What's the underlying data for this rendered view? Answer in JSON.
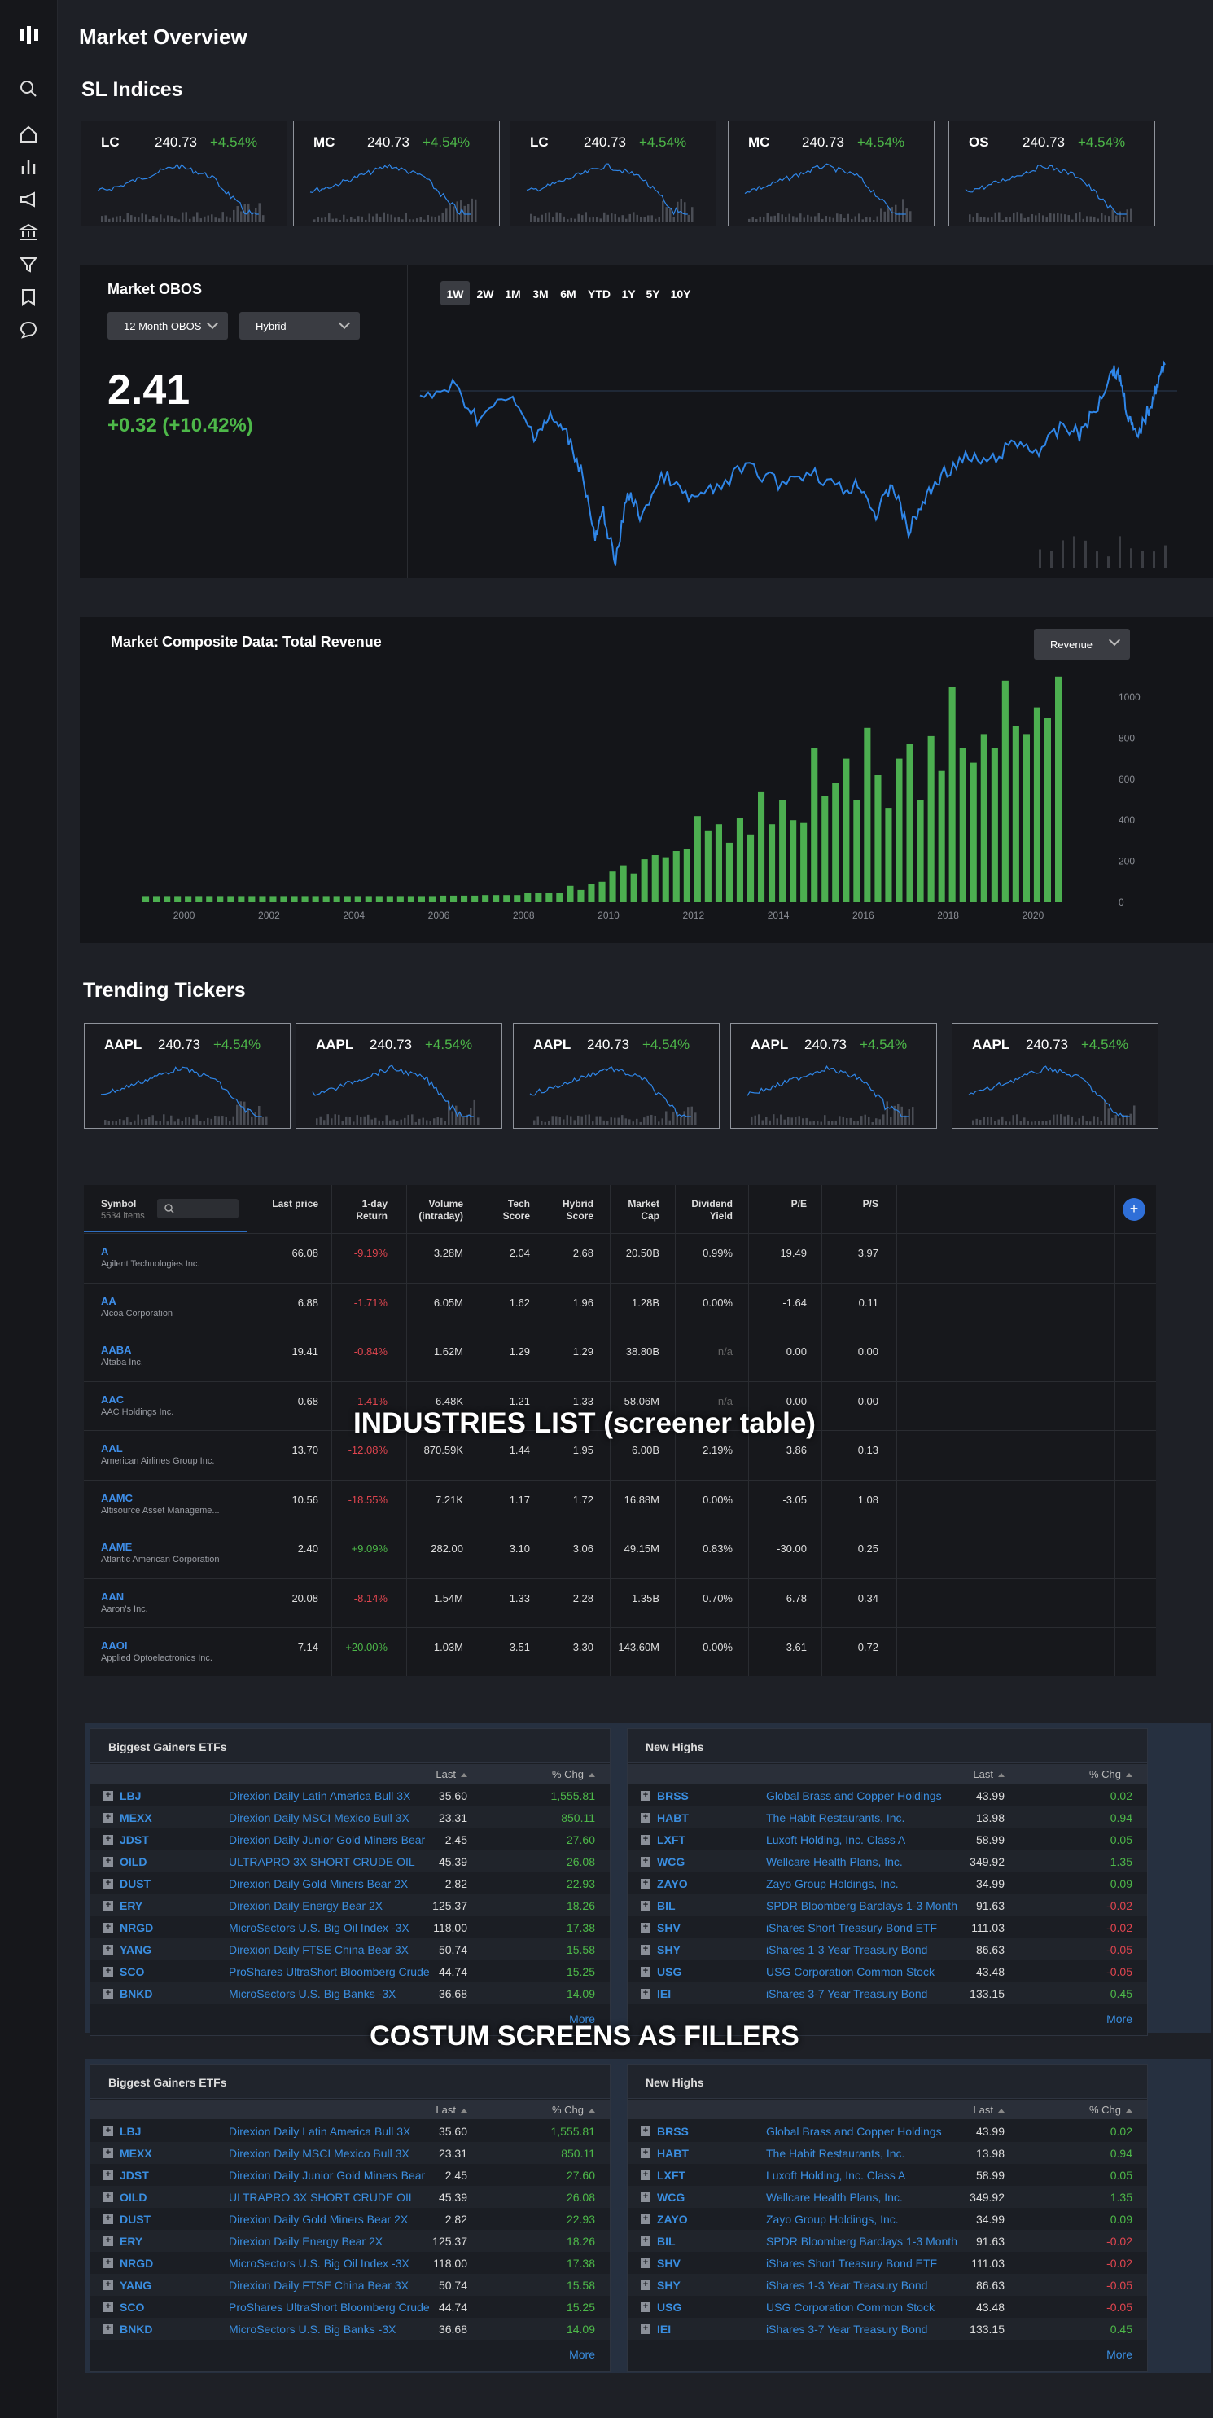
{
  "page": {
    "title": "Market Overview"
  },
  "sidebar": {
    "icons": [
      "logo-icon",
      "search-icon",
      "home-icon",
      "bar-chart-icon",
      "megaphone-icon",
      "bank-icon",
      "filter-icon",
      "bookmark-icon",
      "chat-icon"
    ]
  },
  "indices": {
    "title": "SL Indices",
    "cards": [
      {
        "symbol": "LC",
        "price": "240.73",
        "change": "+4.54%"
      },
      {
        "symbol": "MC",
        "price": "240.73",
        "change": "+4.54%"
      },
      {
        "symbol": "LC",
        "price": "240.73",
        "change": "+4.54%"
      },
      {
        "symbol": "MC",
        "price": "240.73",
        "change": "+4.54%"
      },
      {
        "symbol": "OS",
        "price": "240.73",
        "change": "+4.54%"
      }
    ]
  },
  "obos": {
    "title": "Market OBOS",
    "dropdown1": "12 Month OBOS",
    "dropdown2": "Hybrid",
    "value": "2.41",
    "change": "+0.32 (+10.42%)",
    "tabs": [
      "1W",
      "2W",
      "1M",
      "3M",
      "6M",
      "YTD",
      "1Y",
      "5Y",
      "10Y"
    ],
    "active_tab": "1W"
  },
  "composite": {
    "title": "Market Composite Data: Total Revenue",
    "dropdown": "Revenue"
  },
  "chart_data": {
    "type": "bar",
    "title": "Market Composite Data: Total Revenue",
    "x": [
      "1999Q1",
      "1999Q2",
      "1999Q3",
      "1999Q4",
      "2000Q1",
      "2000Q2",
      "2000Q3",
      "2000Q4",
      "2001Q1",
      "2001Q2",
      "2001Q3",
      "2001Q4",
      "2002Q1",
      "2002Q2",
      "2002Q3",
      "2002Q4",
      "2003Q1",
      "2003Q2",
      "2003Q3",
      "2003Q4",
      "2004Q1",
      "2004Q2",
      "2004Q3",
      "2004Q4",
      "2005Q1",
      "2005Q2",
      "2005Q3",
      "2005Q4",
      "2006Q1",
      "2006Q2",
      "2006Q3",
      "2006Q4",
      "2007Q1",
      "2007Q2",
      "2007Q3",
      "2007Q4",
      "2008Q1",
      "2008Q2",
      "2008Q3",
      "2008Q4",
      "2009Q1",
      "2009Q2",
      "2009Q3",
      "2009Q4",
      "2010Q1",
      "2010Q2",
      "2010Q3",
      "2010Q4",
      "2011Q1",
      "2011Q2",
      "2011Q3",
      "2011Q4",
      "2012Q1",
      "2012Q2",
      "2012Q3",
      "2012Q4",
      "2013Q1",
      "2013Q2",
      "2013Q3",
      "2013Q4",
      "2014Q1",
      "2014Q2",
      "2014Q3",
      "2014Q4",
      "2015Q1",
      "2015Q2",
      "2015Q3",
      "2015Q4",
      "2016Q1",
      "2016Q2",
      "2016Q3",
      "2016Q4",
      "2017Q1",
      "2017Q2",
      "2017Q3",
      "2017Q4",
      "2018Q1",
      "2018Q2",
      "2018Q3",
      "2018Q4",
      "2019Q1",
      "2019Q2",
      "2019Q3",
      "2019Q4",
      "2020Q1",
      "2020Q2",
      "2020Q3"
    ],
    "values": [
      30,
      30,
      30,
      30,
      30,
      30,
      30,
      30,
      30,
      30,
      30,
      30,
      30,
      30,
      30,
      30,
      30,
      30,
      30,
      30,
      30,
      30,
      30,
      30,
      30,
      30,
      30,
      30,
      32,
      32,
      32,
      32,
      35,
      35,
      35,
      35,
      45,
      45,
      45,
      45,
      80,
      60,
      90,
      100,
      150,
      180,
      140,
      210,
      230,
      220,
      250,
      260,
      420,
      350,
      380,
      290,
      410,
      330,
      540,
      380,
      500,
      400,
      390,
      750,
      520,
      580,
      700,
      500,
      850,
      620,
      460,
      700,
      770,
      500,
      810,
      640,
      1050,
      750,
      680,
      820,
      750,
      1080,
      860,
      820,
      950,
      900,
      1100
    ],
    "x_ticks": [
      "2000",
      "2002",
      "2004",
      "2006",
      "2008",
      "2010",
      "2012",
      "2014",
      "2016",
      "2018",
      "2020"
    ],
    "y_ticks": [
      "1000",
      "800",
      "600",
      "400",
      "200",
      "0"
    ],
    "ylim": [
      0,
      1000
    ]
  },
  "trending": {
    "title": "Trending Tickers",
    "cards": [
      {
        "symbol": "AAPL",
        "price": "240.73",
        "change": "+4.54%"
      },
      {
        "symbol": "AAPL",
        "price": "240.73",
        "change": "+4.54%"
      },
      {
        "symbol": "AAPL",
        "price": "240.73",
        "change": "+4.54%"
      },
      {
        "symbol": "AAPL",
        "price": "240.73",
        "change": "+4.54%"
      },
      {
        "symbol": "AAPL",
        "price": "240.73",
        "change": "+4.54%"
      }
    ]
  },
  "screener": {
    "overlay": "INDUSTRIES LIST (screener table)",
    "symbol_label": "Symbol",
    "items_count": "5534 items",
    "add_label": "+",
    "headers": [
      [
        "Last price",
        ""
      ],
      [
        "1-day",
        "Return"
      ],
      [
        "Volume",
        "(intraday)"
      ],
      [
        "Tech",
        "Score"
      ],
      [
        "Hybrid",
        "Score"
      ],
      [
        "Market",
        "Cap"
      ],
      [
        "Dividend",
        "Yield"
      ],
      [
        "P/E",
        ""
      ],
      [
        "P/S",
        ""
      ]
    ],
    "rows": [
      {
        "sym": "A",
        "name": "Agilent Technologies Inc.",
        "cells": [
          "66.08",
          "-9.19%",
          "3.28M",
          "2.04",
          "2.68",
          "20.50B",
          "0.99%",
          "19.49",
          "3.97"
        ]
      },
      {
        "sym": "AA",
        "name": "Alcoa Corporation",
        "cells": [
          "6.88",
          "-1.71%",
          "6.05M",
          "1.62",
          "1.96",
          "1.28B",
          "0.00%",
          "-1.64",
          "0.11"
        ]
      },
      {
        "sym": "AABA",
        "name": "Altaba Inc.",
        "cells": [
          "19.41",
          "-0.84%",
          "1.62M",
          "1.29",
          "1.29",
          "38.80B",
          "n/a",
          "0.00",
          "0.00"
        ]
      },
      {
        "sym": "AAC",
        "name": "AAC Holdings Inc.",
        "cells": [
          "0.68",
          "-1.41%",
          "6.48K",
          "1.21",
          "1.33",
          "58.06M",
          "n/a",
          "0.00",
          "0.00"
        ]
      },
      {
        "sym": "AAL",
        "name": "American Airlines Group Inc.",
        "cells": [
          "13.70",
          "-12.08%",
          "870.59K",
          "1.44",
          "1.95",
          "6.00B",
          "2.19%",
          "3.86",
          "0.13"
        ]
      },
      {
        "sym": "AAMC",
        "name": "Altisource Asset Manageme...",
        "cells": [
          "10.56",
          "-18.55%",
          "7.21K",
          "1.17",
          "1.72",
          "16.88M",
          "0.00%",
          "-3.05",
          "1.08"
        ]
      },
      {
        "sym": "AAME",
        "name": "Atlantic American Corporation",
        "cells": [
          "2.40",
          "+9.09%",
          "282.00",
          "3.10",
          "3.06",
          "49.15M",
          "0.83%",
          "-30.00",
          "0.25"
        ]
      },
      {
        "sym": "AAN",
        "name": "Aaron's Inc.",
        "cells": [
          "20.08",
          "-8.14%",
          "1.54M",
          "1.33",
          "2.28",
          "1.35B",
          "0.70%",
          "6.78",
          "0.34"
        ]
      },
      {
        "sym": "AAOI",
        "name": "Applied Optoelectronics Inc.",
        "cells": [
          "7.14",
          "+20.00%",
          "1.03M",
          "3.51",
          "3.30",
          "143.60M",
          "0.00%",
          "-3.61",
          "0.72"
        ]
      }
    ]
  },
  "fillers": {
    "overlay": "COSTUM SCREENS AS FILLERS",
    "last_label": "Last",
    "chg_label": "% Chg",
    "more_label": "More",
    "gainers": {
      "title": "Biggest Gainers ETFs",
      "rows": [
        {
          "s": "LBJ",
          "n": "Direxion Daily Latin America Bull 3X",
          "l": "35.60",
          "c": "1,555.81"
        },
        {
          "s": "MEXX",
          "n": "Direxion Daily MSCI Mexico Bull 3X",
          "l": "23.31",
          "c": "850.11"
        },
        {
          "s": "JDST",
          "n": "Direxion Daily Junior Gold Miners Bear",
          "l": "2.45",
          "c": "27.60"
        },
        {
          "s": "OILD",
          "n": "ULTRAPRO 3X SHORT CRUDE OIL",
          "l": "45.39",
          "c": "26.08"
        },
        {
          "s": "DUST",
          "n": "Direxion Daily Gold Miners Bear 2X",
          "l": "2.82",
          "c": "22.93"
        },
        {
          "s": "ERY",
          "n": "Direxion Daily Energy Bear 2X",
          "l": "125.37",
          "c": "18.26"
        },
        {
          "s": "NRGD",
          "n": "MicroSectors U.S. Big Oil Index -3X",
          "l": "118.00",
          "c": "17.38"
        },
        {
          "s": "YANG",
          "n": "Direxion Daily FTSE China Bear 3X",
          "l": "50.74",
          "c": "15.58"
        },
        {
          "s": "SCO",
          "n": "ProShares UltraShort Bloomberg Crude",
          "l": "44.74",
          "c": "15.25"
        },
        {
          "s": "BNKD",
          "n": "MicroSectors U.S. Big Banks -3X",
          "l": "36.68",
          "c": "14.09"
        }
      ]
    },
    "highs": {
      "title": "New Highs",
      "rows": [
        {
          "s": "BRSS",
          "n": "Global Brass and Copper Holdings",
          "l": "43.99",
          "c": "0.02"
        },
        {
          "s": "HABT",
          "n": "The Habit Restaurants, Inc.",
          "l": "13.98",
          "c": "0.94"
        },
        {
          "s": "LXFT",
          "n": "Luxoft Holding, Inc. Class A",
          "l": "58.99",
          "c": "0.05"
        },
        {
          "s": "WCG",
          "n": "Wellcare Health Plans, Inc.",
          "l": "349.92",
          "c": "1.35"
        },
        {
          "s": "ZAYO",
          "n": "Zayo Group Holdings, Inc.",
          "l": "34.99",
          "c": "0.09"
        },
        {
          "s": "BIL",
          "n": "SPDR Bloomberg Barclays 1-3 Month",
          "l": "91.63",
          "c": "-0.02"
        },
        {
          "s": "SHV",
          "n": "iShares Short Treasury Bond ETF",
          "l": "111.03",
          "c": "-0.02"
        },
        {
          "s": "SHY",
          "n": "iShares 1-3 Year Treasury Bond",
          "l": "86.63",
          "c": "-0.05"
        },
        {
          "s": "USG",
          "n": "USG Corporation Common Stock",
          "l": "43.48",
          "c": "-0.05"
        },
        {
          "s": "IEI",
          "n": "iShares 3-7 Year Treasury Bond",
          "l": "133.15",
          "c": "0.45"
        }
      ]
    }
  },
  "colors": {
    "up": "#4db849",
    "down": "#e0454f",
    "link": "#3a8ee0",
    "line": "#2f86e8",
    "bar": "#4caf50"
  }
}
